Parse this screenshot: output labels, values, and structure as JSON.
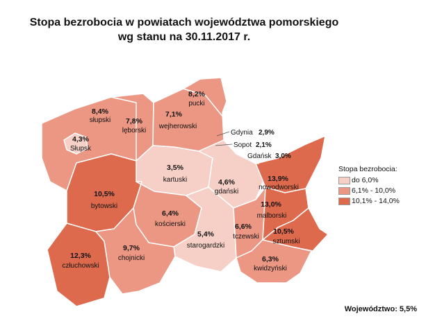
{
  "title": {
    "line1": "Stopa bezrobocia w powiatach województwa pomorskiego",
    "line2": "wg stanu na 30.11.2017 r."
  },
  "colors": {
    "low": "#f6d0c7",
    "mid": "#eb9784",
    "high": "#de6a4e",
    "border": "#ffffff"
  },
  "powiaty": [
    {
      "key": "pucki",
      "name": "pucki",
      "value": "8,2%",
      "cls": "mid"
    },
    {
      "key": "slupski",
      "name": "słupski",
      "value": "8,4%",
      "cls": "mid"
    },
    {
      "key": "leborski",
      "name": "lęborski",
      "value": "7,8%",
      "cls": "mid"
    },
    {
      "key": "wejherowski",
      "name": "wejherowski",
      "value": "7,1%",
      "cls": "mid"
    },
    {
      "key": "slupsk",
      "name": "Słupsk",
      "value": "4,3%",
      "cls": "low"
    },
    {
      "key": "kartuski",
      "name": "kartuski",
      "value": "3,5%",
      "cls": "low"
    },
    {
      "key": "gdanski",
      "name": "gdański",
      "value": "4,6%",
      "cls": "low"
    },
    {
      "key": "nowodworski",
      "name": "nowodworski",
      "value": "13,9%",
      "cls": "high"
    },
    {
      "key": "bytowski",
      "name": "bytowski",
      "value": "10,5%",
      "cls": "high"
    },
    {
      "key": "koscierski",
      "name": "kościerski",
      "value": "6,4%",
      "cls": "mid"
    },
    {
      "key": "malborski",
      "name": "malborski",
      "value": "13,0%",
      "cls": "high"
    },
    {
      "key": "starogardzki",
      "name": "starogardzki",
      "value": "5,4%",
      "cls": "low"
    },
    {
      "key": "tczewski",
      "name": "tczewski",
      "value": "6,6%",
      "cls": "mid"
    },
    {
      "key": "sztumski",
      "name": "sztumski",
      "value": "10,5%",
      "cls": "high"
    },
    {
      "key": "czluchowski",
      "name": "człuchowski",
      "value": "12,3%",
      "cls": "high"
    },
    {
      "key": "chojnicki",
      "name": "chojnicki",
      "value": "9,7%",
      "cls": "mid"
    },
    {
      "key": "kwidzynski",
      "name": "kwidzyński",
      "value": "6,3%",
      "cls": "mid"
    }
  ],
  "cities": [
    {
      "name": "Gdynia",
      "value": "2,9%"
    },
    {
      "name": "Sopot",
      "value": "2,1%"
    },
    {
      "name": "Gdańsk",
      "value": "3,0%"
    }
  ],
  "legend": {
    "title": "Stopa bezrobocia:",
    "items": [
      {
        "label": "do 6,0%",
        "color": "#f6d0c7"
      },
      {
        "label": "6,1% - 10,0%",
        "color": "#eb9784"
      },
      {
        "label": "10,1% - 14,0%",
        "color": "#de6a4e"
      }
    ]
  },
  "footer": "Województwo: 5,5%"
}
